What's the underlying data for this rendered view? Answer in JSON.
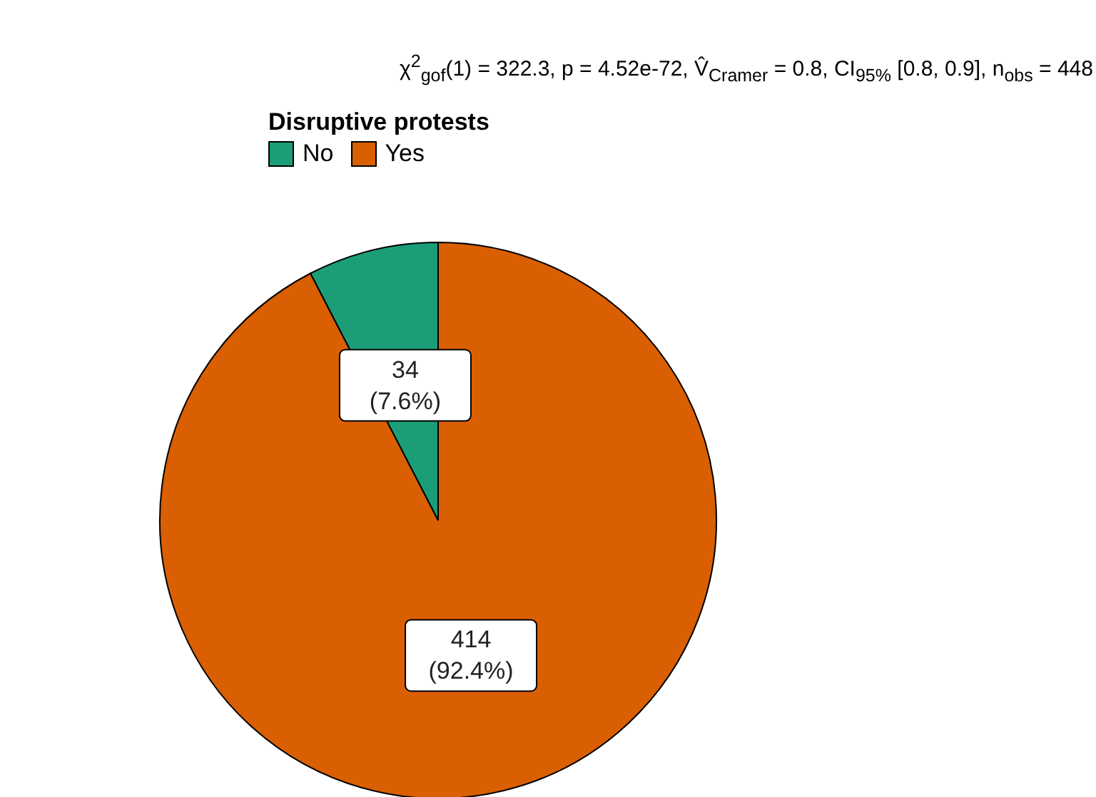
{
  "chart_data": {
    "type": "pie",
    "title": "χ$^{2}$$_{gof}$(1) = 322.3, p = 4.52e-72, V̂$_{Cramer}$ = 0.8, CI$_{95%}$ [0.8, 0.9], n$_{obs}$ = 448",
    "legend_title": "Disruptive protests",
    "legend": "top",
    "categories": [
      "No",
      "Yes"
    ],
    "values": [
      34,
      414
    ],
    "colors": [
      "#1b9e77",
      "#d95f02"
    ],
    "value_labels": [
      "34 (7.6%)",
      "414 (92.4%)"
    ]
  }
}
